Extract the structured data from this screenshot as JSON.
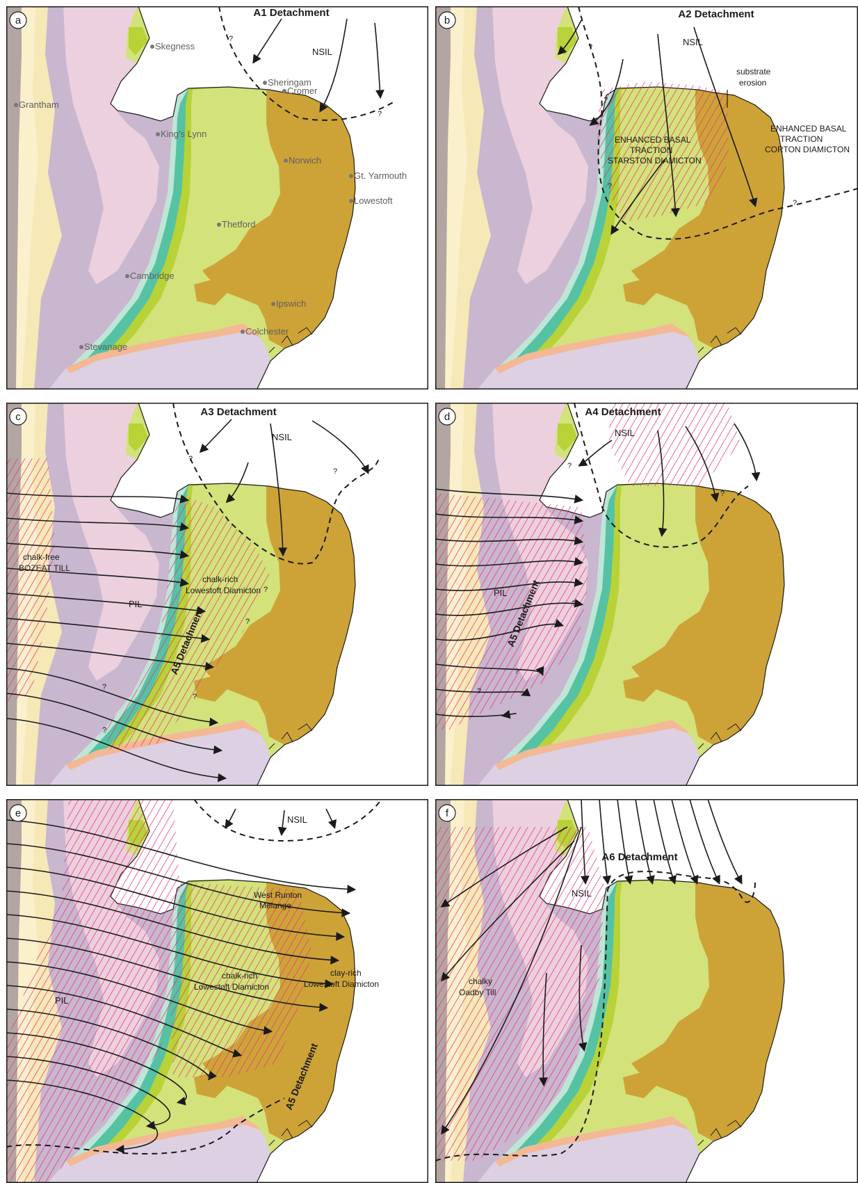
{
  "colors": {
    "sea": "#ffffff",
    "far_west_rock": "#b3a6a2",
    "cream_band": "#f6e8b7",
    "pale_yellow": "#fbf0cc",
    "lilac_jurassic": "#c9b6cf",
    "pink_lias": "#ecd0dd",
    "lime_chalk": "#d3e27a",
    "bright_green": "#b8d238",
    "teal": "#55c2a4",
    "pale_teal": "#bfe5d6",
    "ochre_crag": "#cda338",
    "salmon": "#f4b894",
    "light_lilac_south": "#dcd0e2",
    "hatch": "#e8347c",
    "ink": "#1a1a1a",
    "town_label": "#5f5f5f"
  },
  "panels": [
    {
      "letter": "a",
      "detachment_label": "A1 Detachment",
      "labels": [
        {
          "id": "nsil",
          "text": "NSIL"
        },
        {
          "id": "question-mark-1",
          "text": "?"
        },
        {
          "id": "question-mark-2",
          "text": "?"
        }
      ],
      "towns": [
        {
          "id": "skegness",
          "text": "Skegness"
        },
        {
          "id": "grantham",
          "text": "Grantham"
        },
        {
          "id": "sheringham",
          "text": "Sheringam"
        },
        {
          "id": "cromer",
          "text": "Cromer"
        },
        {
          "id": "kings-lynn",
          "text": "King's Lynn"
        },
        {
          "id": "norwich",
          "text": "Norwich"
        },
        {
          "id": "gt-yarmouth",
          "text": "Gt. Yarmouth"
        },
        {
          "id": "lowestoft",
          "text": "Lowestoft"
        },
        {
          "id": "thetford",
          "text": "Thetford"
        },
        {
          "id": "cambridge",
          "text": "Cambridge"
        },
        {
          "id": "ipswich",
          "text": "Ipswich"
        },
        {
          "id": "colchester",
          "text": "Colchester"
        },
        {
          "id": "stevenage",
          "text": "Stevanage"
        }
      ]
    },
    {
      "letter": "b",
      "detachment_label": "A2 Detachment",
      "labels": [
        {
          "id": "nsil",
          "text": "NSIL"
        },
        {
          "id": "substrate-erosion-1",
          "text": "substrate"
        },
        {
          "id": "substrate-erosion-2",
          "text": "erosion"
        },
        {
          "id": "starston-1",
          "text": "ENHANCED BASAL"
        },
        {
          "id": "starston-2",
          "text": "TRACTION"
        },
        {
          "id": "starston-3",
          "text": "STARSTON DIAMICTON"
        },
        {
          "id": "corton-1",
          "text": "ENHANCED BASAL"
        },
        {
          "id": "corton-2",
          "text": "TRACTION"
        },
        {
          "id": "corton-3",
          "text": "CORTON DIAMICTON"
        },
        {
          "id": "question-mark-1",
          "text": "?"
        },
        {
          "id": "question-mark-2",
          "text": "?"
        },
        {
          "id": "question-mark-3",
          "text": "?"
        },
        {
          "id": "question-mark-4",
          "text": "?"
        }
      ]
    },
    {
      "letter": "c",
      "detachment_label": "A3 Detachment",
      "labels": [
        {
          "id": "nsil",
          "text": "NSIL"
        },
        {
          "id": "bozeat-1",
          "text": "chalk-free"
        },
        {
          "id": "bozeat-2",
          "text": "BOZEAT TILL"
        },
        {
          "id": "pil",
          "text": "PIL"
        },
        {
          "id": "lowestoft-chalk-1",
          "text": "chalk-rich"
        },
        {
          "id": "lowestoft-chalk-2",
          "text": "Lowestoft Diamicton"
        },
        {
          "id": "a5-detachment",
          "text": "A5 Detachment"
        },
        {
          "id": "question-mark-1",
          "text": "?"
        },
        {
          "id": "question-mark-2",
          "text": "?"
        },
        {
          "id": "question-mark-3",
          "text": "?"
        },
        {
          "id": "question-mark-4",
          "text": "?"
        },
        {
          "id": "question-mark-5",
          "text": "?"
        },
        {
          "id": "question-mark-6",
          "text": "?"
        },
        {
          "id": "question-mark-7",
          "text": "?"
        }
      ]
    },
    {
      "letter": "d",
      "detachment_label": "A4 Detachment",
      "labels": [
        {
          "id": "nsil",
          "text": "NSIL"
        },
        {
          "id": "pil",
          "text": "PIL"
        },
        {
          "id": "a5-detachment",
          "text": "A5 Detachment"
        },
        {
          "id": "question-mark-1",
          "text": "?"
        },
        {
          "id": "question-mark-2",
          "text": "?"
        },
        {
          "id": "question-mark-3",
          "text": "?"
        },
        {
          "id": "question-mark-4",
          "text": "?"
        },
        {
          "id": "question-mark-5",
          "text": "?"
        }
      ]
    },
    {
      "letter": "e",
      "detachment_label": "",
      "labels": [
        {
          "id": "nsil",
          "text": "NSIL"
        },
        {
          "id": "west-runton-1",
          "text": "West Runton"
        },
        {
          "id": "west-runton-2",
          "text": "Melange"
        },
        {
          "id": "pil",
          "text": "PIL"
        },
        {
          "id": "lowestoft-chalk-1",
          "text": "chalk-rich"
        },
        {
          "id": "lowestoft-chalk-2",
          "text": "Lowestoft Diamicton"
        },
        {
          "id": "lowestoft-clay-1",
          "text": "clay-rich"
        },
        {
          "id": "lowestoft-clay-2",
          "text": "Lowestoft Diamicton"
        },
        {
          "id": "a5-detachment",
          "text": "A5 Detachment"
        }
      ]
    },
    {
      "letter": "f",
      "detachment_label": "A6 Detachment",
      "labels": [
        {
          "id": "nsil",
          "text": "NSIL"
        },
        {
          "id": "oadby-1",
          "text": "chalky"
        },
        {
          "id": "oadby-2",
          "text": "Oadby Till"
        }
      ]
    }
  ]
}
